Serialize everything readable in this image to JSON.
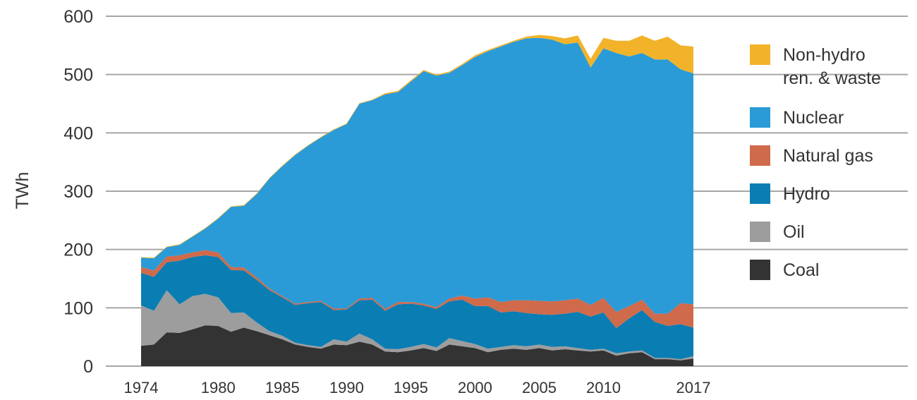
{
  "chart_data": {
    "type": "area",
    "stacked": true,
    "title": "",
    "xlabel": "",
    "ylabel": "TWh",
    "ylim": [
      0,
      600
    ],
    "yticks": [
      0,
      100,
      200,
      300,
      400,
      500,
      600
    ],
    "xticks": [
      1974,
      1980,
      1985,
      1990,
      1995,
      2000,
      2005,
      2010,
      2017
    ],
    "grid": true,
    "legend_position": "right",
    "x": [
      1974,
      1975,
      1976,
      1977,
      1978,
      1979,
      1980,
      1981,
      1982,
      1983,
      1984,
      1985,
      1986,
      1987,
      1988,
      1989,
      1990,
      1991,
      1992,
      1993,
      1994,
      1995,
      1996,
      1997,
      1998,
      1999,
      2000,
      2001,
      2002,
      2003,
      2004,
      2005,
      2006,
      2007,
      2008,
      2009,
      2010,
      2011,
      2012,
      2013,
      2014,
      2015,
      2016,
      2017
    ],
    "series": [
      {
        "name": "Coal",
        "color": "#333333",
        "values": [
          35,
          37,
          58,
          57,
          63,
          70,
          69,
          59,
          66,
          60,
          53,
          46,
          37,
          33,
          30,
          37,
          36,
          42,
          37,
          25,
          24,
          27,
          31,
          26,
          37,
          34,
          31,
          24,
          28,
          30,
          28,
          31,
          27,
          29,
          27,
          25,
          27,
          18,
          22,
          24,
          12,
          12,
          10,
          13
        ]
      },
      {
        "name": "Oil",
        "color": "#9d9d9d",
        "values": [
          69,
          58,
          72,
          49,
          57,
          54,
          49,
          32,
          26,
          15,
          7,
          6,
          3,
          3,
          3,
          9,
          6,
          14,
          9,
          5,
          5,
          6,
          7,
          6,
          11,
          9,
          7,
          6,
          5,
          6,
          6,
          6,
          6,
          5,
          4,
          3,
          3,
          4,
          3,
          3,
          2,
          2,
          2,
          4
        ]
      },
      {
        "name": "Hydro",
        "color": "#0a7db3",
        "values": [
          56,
          58,
          48,
          75,
          67,
          66,
          69,
          74,
          72,
          73,
          70,
          66,
          65,
          72,
          77,
          50,
          55,
          57,
          68,
          65,
          77,
          74,
          66,
          66,
          63,
          71,
          65,
          73,
          59,
          58,
          57,
          52,
          55,
          56,
          62,
          57,
          62,
          43,
          57,
          69,
          62,
          55,
          60,
          49
        ]
      },
      {
        "name": "Natural gas",
        "color": "#cf6a4b",
        "values": [
          10,
          11,
          10,
          9,
          8,
          9,
          8,
          5,
          5,
          4,
          3,
          2,
          2,
          2,
          2,
          3,
          2,
          3,
          3,
          3,
          4,
          3,
          3,
          3,
          5,
          7,
          13,
          15,
          18,
          19,
          22,
          23,
          23,
          23,
          23,
          20,
          25,
          28,
          21,
          18,
          14,
          21,
          36,
          40
        ]
      },
      {
        "name": "Nuclear",
        "color": "#2a9bd6",
        "values": [
          16,
          21,
          16,
          18,
          27,
          37,
          58,
          103,
          106,
          143,
          189,
          223,
          255,
          268,
          280,
          306,
          316,
          334,
          339,
          368,
          360,
          378,
          399,
          397,
          387,
          395,
          414,
          422,
          438,
          443,
          449,
          451,
          449,
          439,
          439,
          407,
          428,
          444,
          428,
          423,
          436,
          436,
          401,
          396
        ]
      },
      {
        "name": "Non-hydro ren. & waste",
        "color": "#f2b32a",
        "values": [
          1,
          1,
          1,
          1,
          1,
          1,
          1,
          1,
          1,
          1,
          1,
          1,
          1,
          1,
          1,
          1,
          1,
          1,
          1,
          2,
          2,
          2,
          2,
          2,
          2,
          2,
          3,
          2,
          2,
          2,
          3,
          5,
          6,
          10,
          12,
          15,
          18,
          21,
          27,
          30,
          32,
          39,
          41,
          46
        ]
      }
    ],
    "legend_order": [
      "Non-hydro ren. & waste",
      "Nuclear",
      "Natural gas",
      "Hydro",
      "Oil",
      "Coal"
    ]
  }
}
